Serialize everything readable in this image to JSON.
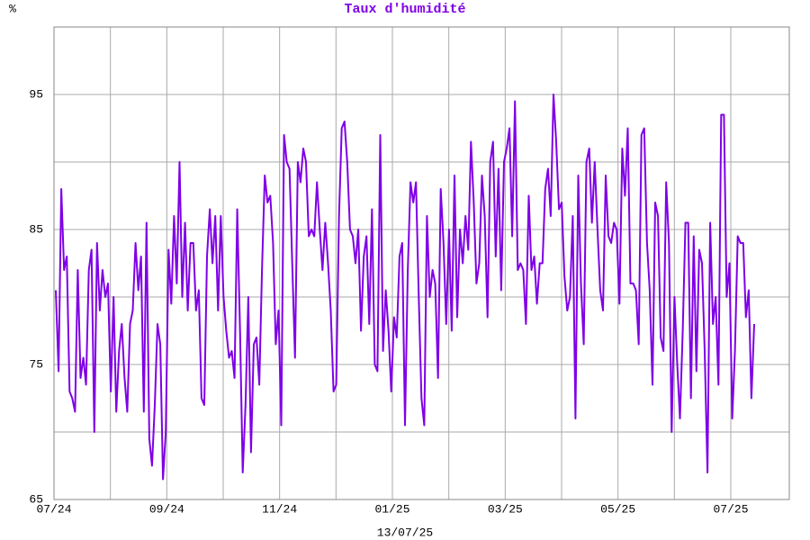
{
  "chart_data": {
    "type": "line",
    "title": "Taux d'humidité",
    "unit": "%",
    "footer": "13/07/25",
    "color": "#7f00e6",
    "grid": true,
    "ylim": [
      65,
      100
    ],
    "yticks": [
      65,
      75,
      85,
      95
    ],
    "xticks": [
      "07/24",
      "09/24",
      "11/24",
      "01/25",
      "03/25",
      "05/25",
      "07/25"
    ],
    "values": [
      80.5,
      74.5,
      88,
      82,
      83,
      73,
      72.5,
      71.5,
      82,
      74,
      75.5,
      73.5,
      82,
      83.5,
      70,
      84,
      79,
      82,
      80,
      81,
      73,
      80,
      71.5,
      76,
      78,
      74,
      71.5,
      78,
      79,
      84,
      80.5,
      83,
      71.5,
      85.5,
      69.5,
      67.5,
      72,
      78,
      76.5,
      66.5,
      70,
      83.5,
      79.5,
      86,
      81,
      90,
      80,
      85.5,
      79,
      84,
      84,
      79,
      80.5,
      72.5,
      72,
      83,
      86.5,
      82.5,
      86,
      79,
      86,
      80,
      77.5,
      75.5,
      76,
      74,
      86.5,
      77.5,
      67,
      72,
      80,
      68.5,
      76.5,
      77,
      73.5,
      82,
      89,
      87,
      87.5,
      84,
      76.5,
      79,
      70.5,
      92,
      90,
      89.5,
      82.5,
      75.5,
      90,
      88.5,
      91,
      90,
      84.5,
      85,
      84.5,
      88.5,
      85,
      82,
      85.5,
      82.5,
      79,
      73,
      73.5,
      86,
      92.5,
      93,
      90,
      85,
      84.5,
      82.5,
      85,
      77.5,
      83,
      84.5,
      78,
      86.5,
      75,
      74.5,
      92,
      76,
      80.5,
      77.5,
      73,
      78.5,
      77,
      83,
      84,
      70.5,
      82,
      88.5,
      87,
      88.5,
      80,
      72.5,
      70.5,
      86,
      80,
      82,
      81,
      74,
      88,
      84,
      78,
      85,
      77.5,
      89,
      78.5,
      85,
      82.5,
      86,
      83.5,
      91.5,
      87,
      81,
      82.5,
      89,
      86,
      78.5,
      90,
      91.5,
      83,
      89.5,
      80.5,
      90,
      91,
      92.5,
      84.5,
      94.5,
      82,
      82.5,
      82,
      78,
      87.5,
      82,
      83,
      79.5,
      82.5,
      82.5,
      88,
      89.5,
      86,
      95,
      91.5,
      86.5,
      87,
      81.5,
      79,
      80,
      86,
      71,
      89,
      81,
      76.5,
      90,
      91,
      85.5,
      90,
      85,
      80.5,
      79,
      89,
      84.5,
      84,
      85.5,
      85,
      79.5,
      91,
      87.5,
      92.5,
      81,
      81,
      80.5,
      76.5,
      92,
      92.5,
      84,
      80.5,
      73.5,
      87,
      86,
      77,
      76,
      88.5,
      84,
      70,
      80,
      75,
      71,
      77.5,
      85.5,
      85.5,
      72.5,
      84.5,
      74.5,
      83.5,
      82.5,
      76,
      67,
      85.5,
      78,
      80,
      73.5,
      93.5,
      93.5,
      80,
      82.5,
      71,
      76,
      84.5,
      84,
      84,
      78.5,
      80.5,
      72.5,
      78
    ]
  }
}
